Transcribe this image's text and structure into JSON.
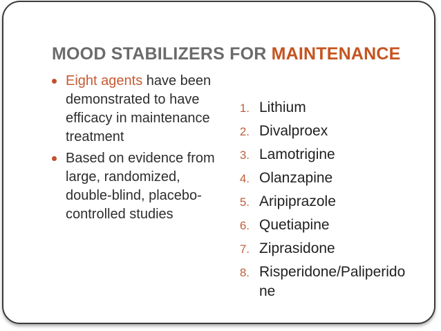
{
  "slide": {
    "title": {
      "prefix": "MOOD STABILIZERS FOR ",
      "accent": "MAINTENANCE"
    },
    "bullets": [
      {
        "highlight": "Eight agents",
        "rest": " have been demonstrated to have efficacy in maintenance treatment"
      },
      {
        "highlight": "",
        "rest": "Based on evidence from large, randomized, double-blind, placebo-controlled studies"
      }
    ],
    "agents": [
      {
        "num": "1.",
        "label": "Lithium"
      },
      {
        "num": "2.",
        "label": "Divalproex"
      },
      {
        "num": "3.",
        "label": "Lamotrigine"
      },
      {
        "num": "4.",
        "label": "Olanzapine"
      },
      {
        "num": "5.",
        "label": "Aripiprazole"
      },
      {
        "num": "6.",
        "label": "Quetiapine"
      },
      {
        "num": "7.",
        "label": "Ziprasidone"
      },
      {
        "num": "8.",
        "label": "Risperidone/Paliperidone"
      }
    ],
    "colors": {
      "accent_orange": "#C5541F",
      "body_highlight_orange": "#C75A32",
      "title_gray": "#6B6B6C",
      "body_text": "#2D2D2D",
      "list_number_orange": "#BE5F3C",
      "bullet_dot_orange": "#C0512C",
      "frame_border": "#3A3A3A",
      "background": "#FFFFFF"
    }
  }
}
